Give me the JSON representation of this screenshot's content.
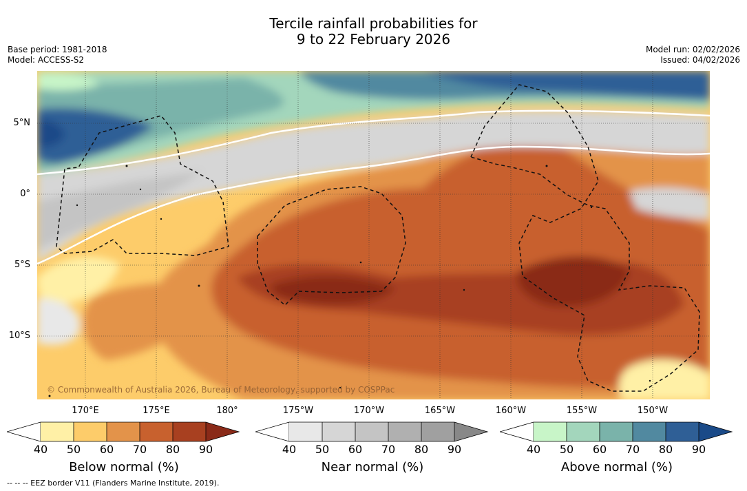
{
  "title": {
    "line1": "Tercile rainfall probabilities for",
    "line2": "9 to 22 February 2026"
  },
  "meta": {
    "base_period": "Base period: 1981-2018",
    "model": "Model: ACCESS-S2",
    "model_run": "Model run: 02/02/2026",
    "issued": "Issued: 04/02/2026"
  },
  "axes": {
    "lat_labels": [
      "5°N",
      "0°",
      "5°S",
      "10°S"
    ],
    "lon_labels": [
      "170°E",
      "175°E",
      "180°",
      "175°W",
      "170°W",
      "165°W",
      "160°W",
      "155°W",
      "150°W"
    ]
  },
  "copyright": "© Commonwealth of Australia 2026, Bureau of Meteorology, supported by COSPPac",
  "colorbars": [
    {
      "title": "Below normal (%)",
      "ticks": [
        "40",
        "50",
        "60",
        "70",
        "80",
        "90"
      ],
      "colors": [
        "#fff0a6",
        "#fdcc6a",
        "#e3934a",
        "#c8612e",
        "#a84020",
        "#8a2a18"
      ]
    },
    {
      "title": "Near normal (%)",
      "ticks": [
        "40",
        "50",
        "60",
        "70",
        "80",
        "90"
      ],
      "colors": [
        "#e8e8e8",
        "#d6d6d6",
        "#c4c4c4",
        "#b0b0b0",
        "#a0a0a0",
        "#888888"
      ]
    },
    {
      "title": "Above normal (%)",
      "ticks": [
        "40",
        "50",
        "60",
        "70",
        "80",
        "90"
      ],
      "colors": [
        "#c8f5c8",
        "#a3d6bc",
        "#7ab3aa",
        "#5189a0",
        "#2f5f96",
        "#1a4a88"
      ]
    }
  ],
  "footnote": "--  --  -- EEZ border V11 (Flanders Marine Institute, 2019).",
  "colors": {
    "below": [
      "#fff0a6",
      "#fdcc6a",
      "#e3934a",
      "#c8612e",
      "#a84020",
      "#8a2a18"
    ],
    "near": [
      "#e8e8e8",
      "#d6d6d6",
      "#c4c4c4"
    ],
    "above": [
      "#c8f5c8",
      "#a3d6bc",
      "#7ab3aa",
      "#5189a0",
      "#2f5f96"
    ]
  }
}
